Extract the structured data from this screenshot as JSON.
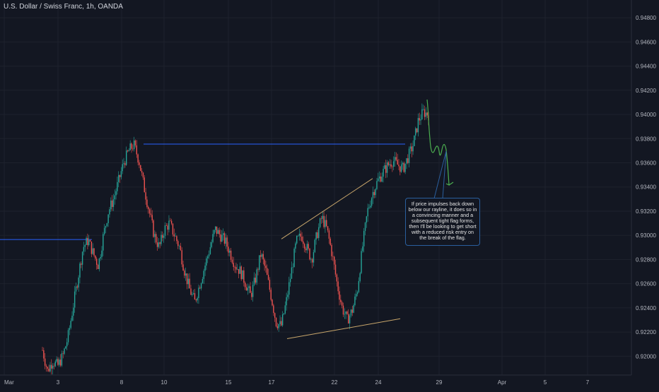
{
  "header": {
    "title": "U.S. Dollar / Swiss Franc, 1h, OANDA"
  },
  "annotation": {
    "text": "If price impulses back down below our rayline, it does so in a convincing manner and a subsequent tight flag forms, then I'll be looking to get short with a reduced risk entry on the break of the flag."
  },
  "colors": {
    "background": "#131722",
    "grid": "#1e222d",
    "up_candle": "#26a69a",
    "down_candle": "#ef5350",
    "rayline": "#2962ff",
    "wedge_lines": "#c8a66b",
    "projection": "#4caf50",
    "axis_text": "#b2b5be"
  },
  "chart_data": {
    "type": "candlestick",
    "symbol": "U.S. Dollar / Swiss Franc",
    "timeframe": "1h",
    "source": "OANDA",
    "x_tick_labels": [
      "Mar",
      "3",
      "8",
      "10",
      "15",
      "17",
      "22",
      "24",
      "29",
      "Apr",
      "5",
      "7"
    ],
    "y_tick_labels": [
      "0.92000",
      "0.92200",
      "0.92400",
      "0.92600",
      "0.92800",
      "0.93000",
      "0.93200",
      "0.93400",
      "0.93600",
      "0.93800",
      "0.94000",
      "0.94200",
      "0.94400",
      "0.94600",
      "0.94800"
    ],
    "ylim": [
      0.9185,
      0.949
    ],
    "series": [
      {
        "name": "",
        "close_path": [
          0.9205,
          0.9188,
          0.9196,
          0.9192,
          0.92,
          0.9215,
          0.924,
          0.9265,
          0.929,
          0.9296,
          0.9285,
          0.9275,
          0.93,
          0.932,
          0.933,
          0.9345,
          0.936,
          0.937,
          0.9375,
          0.9362,
          0.934,
          0.932,
          0.93,
          0.929,
          0.9305,
          0.931,
          0.93,
          0.929,
          0.927,
          0.9255,
          0.9245,
          0.926,
          0.9275,
          0.929,
          0.9305,
          0.93,
          0.9295,
          0.9285,
          0.9275,
          0.927,
          0.926,
          0.925,
          0.9265,
          0.9285,
          0.927,
          0.925,
          0.9228,
          0.9225,
          0.9245,
          0.927,
          0.9295,
          0.93,
          0.929,
          0.928,
          0.93,
          0.9315,
          0.9305,
          0.9285,
          0.926,
          0.924,
          0.923,
          0.9238,
          0.9255,
          0.929,
          0.932,
          0.9335,
          0.9345,
          0.9352,
          0.9358,
          0.9362,
          0.9358,
          0.9355,
          0.9365,
          0.9375,
          0.9395,
          0.9402,
          0.94
        ]
      }
    ],
    "levels": [
      {
        "name": "rayline",
        "y": 0.93755
      },
      {
        "name": "prior level",
        "y": 0.92965
      }
    ],
    "wedge": {
      "upper": [
        {
          "x": "17",
          "y": 0.9297
        },
        {
          "x": "24",
          "y": 0.9347
        }
      ],
      "lower": [
        {
          "x": "17",
          "y": 0.92145
        },
        {
          "x": "24",
          "y": 0.9231
        }
      ]
    },
    "grid": true
  }
}
